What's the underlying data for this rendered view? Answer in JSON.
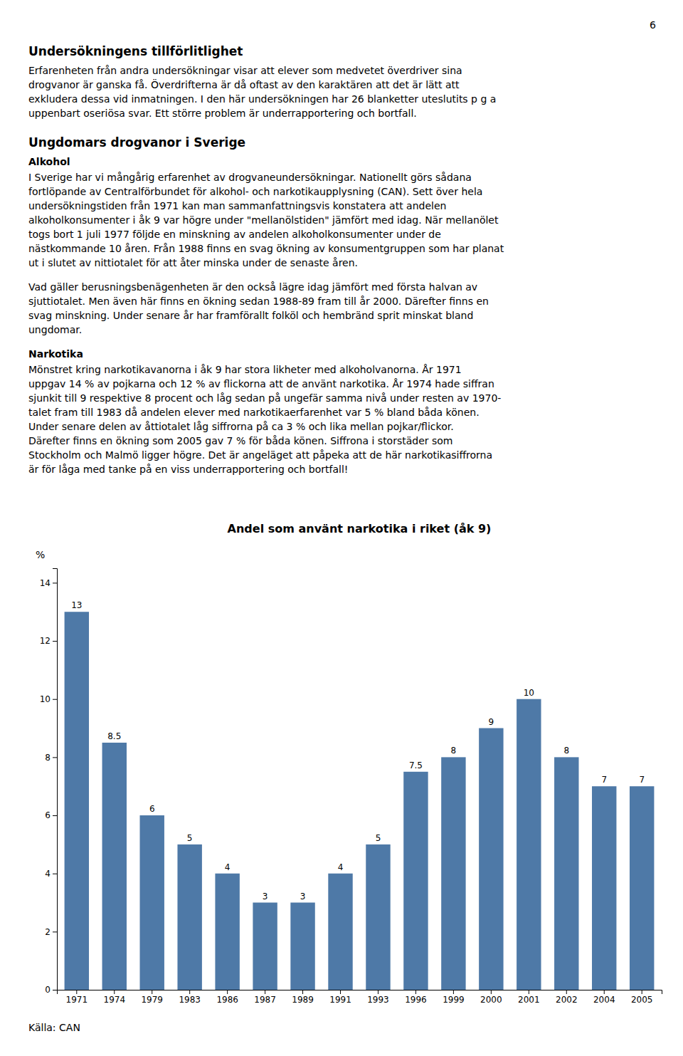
{
  "page_number": "6",
  "page_text": [
    {
      "kind": "heading",
      "text": "Undersökningens tillförlitlighet"
    },
    {
      "kind": "paragraph",
      "lines": [
        "Erfarenheten från andra undersökningar visar att elever som medvetet överdriver sina",
        "drogvanor är ganska få. Överdrifterna är då oftast av den karaktären att det är lätt att",
        "exkludera dessa vid inmatningen. I den här undersökningen har 26 blanketter uteslutits p g a",
        "uppenbart oseriösa svar. Ett större problem är underrapportering och bortfall."
      ]
    },
    {
      "kind": "heading",
      "text": "Ungdomars drogvanor i Sverige"
    },
    {
      "kind": "subheading",
      "text": "Alkohol"
    },
    {
      "kind": "paragraph",
      "lines": [
        "I Sverige har vi mångårig erfarenhet av drogvaneundersökningar. Nationellt görs sådana",
        "fortlöpande av Centralförbundet för alkohol- och narkotikaupplysning (CAN). Sett över hela",
        "undersökningstiden från 1971 kan man sammanfattningsvis konstatera att andelen",
        "alkoholkonsumenter i åk 9 var högre under \"mellanölstiden\" jämfört med idag. När mellanölet",
        "togs bort 1 juli 1977 följde en minskning av andelen alkoholkonsumenter under de",
        "nästkommande 10 åren. Från 1988 finns en svag ökning av konsumentgruppen som har planat",
        "ut i slutet av nittiotalet för att åter minska under de senaste åren."
      ]
    },
    {
      "kind": "paragraph",
      "lines": [
        "Vad gäller berusningsbenägenheten är den också lägre idag jämfört med första halvan av",
        "sjuttiotalet. Men även här finns en ökning sedan 1988-89 fram till år 2000. Därefter finns en",
        "svag minskning. Under senare år har framförallt folköl och hembränd sprit minskat bland",
        "ungdomar."
      ]
    },
    {
      "kind": "subheading",
      "text": "Narkotika"
    },
    {
      "kind": "paragraph",
      "lines": [
        "Mönstret kring narkotikavanorna i åk 9 har stora likheter med alkoholvanorna. År 1971",
        "uppgav 14 % av pojkarna och 12 % av flickorna att de använt narkotika. År 1974 hade siffran",
        "sjunkit till 9 respektive 8 procent och låg sedan på ungefär samma nivå under resten av 1970-",
        "talet fram till 1983 då andelen elever med narkotikaerfarenhet var 5 % bland båda könen.",
        "Under senare delen av åttiotalet låg siffrorna på ca 3 % och lika mellan pojkar/flickor.",
        "Därefter finns en ökning som 2005 gav 7 % för båda könen. Siffrona i storstäder som",
        "Stockholm och Malmö ligger högre. Det är angeläget att påpeka att de här narkotikasiffrorna",
        "är för låga med tanke på en viss underrapportering och bortfall!"
      ]
    }
  ],
  "chart_data": {
    "type": "bar",
    "title": "Andel som använt narkotika i riket (åk 9)",
    "ylabel": "%",
    "categories": [
      "1971",
      "1974",
      "1979",
      "1983",
      "1986",
      "1987",
      "1989",
      "1991",
      "1993",
      "1996",
      "1999",
      "2000",
      "2001",
      "2002",
      "2004",
      "2005"
    ],
    "values": [
      13,
      8.5,
      6,
      5,
      4,
      3,
      3,
      4,
      5,
      7.5,
      8,
      9,
      10,
      8,
      7,
      7
    ],
    "ylim": [
      0,
      14.5
    ],
    "yticks": [
      0,
      2,
      4,
      6,
      8,
      10,
      12,
      14
    ],
    "grid": false,
    "data_labels": true,
    "source": "Källa: CAN"
  }
}
